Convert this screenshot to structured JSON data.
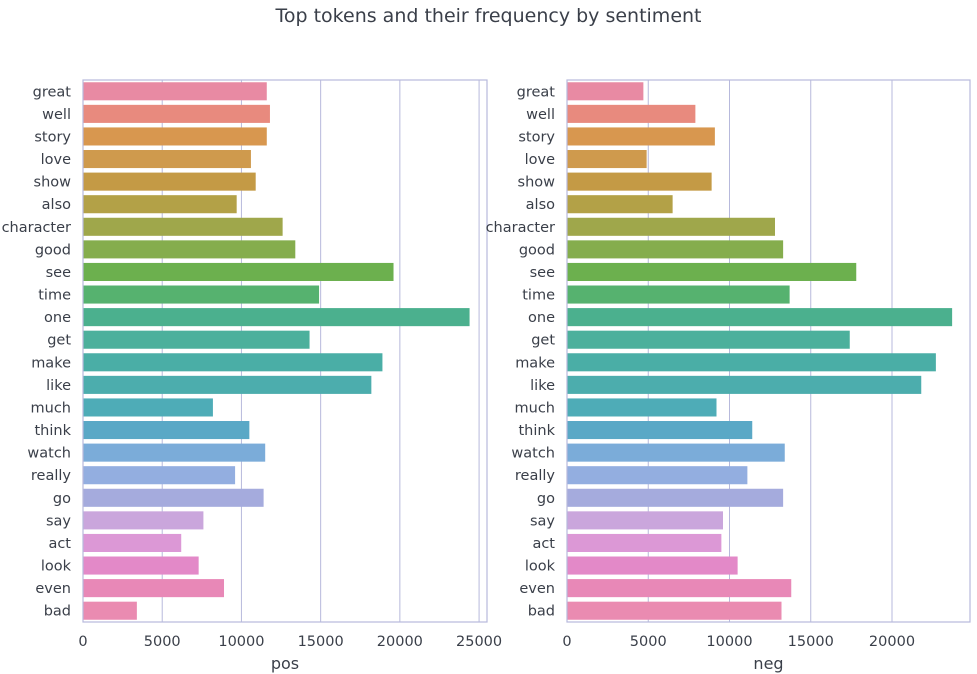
{
  "title": "Top tokens and their frequency by sentiment",
  "chart_data": {
    "type": "bar",
    "orientation": "horizontal",
    "categories": [
      "great",
      "well",
      "story",
      "love",
      "show",
      "also",
      "character",
      "good",
      "see",
      "time",
      "one",
      "get",
      "make",
      "like",
      "much",
      "think",
      "watch",
      "really",
      "go",
      "say",
      "act",
      "look",
      "even",
      "bad"
    ],
    "bar_colors": [
      "#e88aa3",
      "#e88a7e",
      "#d8974f",
      "#cf9a4d",
      "#c49a45",
      "#b3a147",
      "#9fa74b",
      "#85ad4d",
      "#6cb04e",
      "#56b26f",
      "#4bb08e",
      "#4cb09c",
      "#4aaea6",
      "#4cadad",
      "#4eacb7",
      "#5aa8c6",
      "#7bacd9",
      "#93aee0",
      "#a5abdd",
      "#caa6dc",
      "#dc98d6",
      "#e389c8",
      "#e888b7",
      "#ea8bb1"
    ],
    "series": [
      {
        "xlabel": "pos",
        "xlim": [
          0,
          25500
        ],
        "xticks": [
          0,
          5000,
          10000,
          15000,
          20000,
          25000
        ],
        "values": [
          11600,
          11800,
          11600,
          10600,
          10900,
          9700,
          12600,
          13400,
          19600,
          14900,
          24400,
          14300,
          18900,
          18200,
          8200,
          10500,
          11500,
          9600,
          11400,
          7600,
          6200,
          7300,
          8900,
          3400
        ]
      },
      {
        "xlabel": "neg",
        "xlim": [
          0,
          24800
        ],
        "xticks": [
          0,
          5000,
          10000,
          15000,
          20000
        ],
        "values": [
          4700,
          7900,
          9100,
          4900,
          8900,
          6500,
          12800,
          13300,
          17800,
          13700,
          23700,
          17400,
          22700,
          21800,
          9200,
          11400,
          13400,
          11100,
          13300,
          9600,
          9500,
          10500,
          13800,
          13200
        ]
      }
    ],
    "grid": "vertical"
  }
}
